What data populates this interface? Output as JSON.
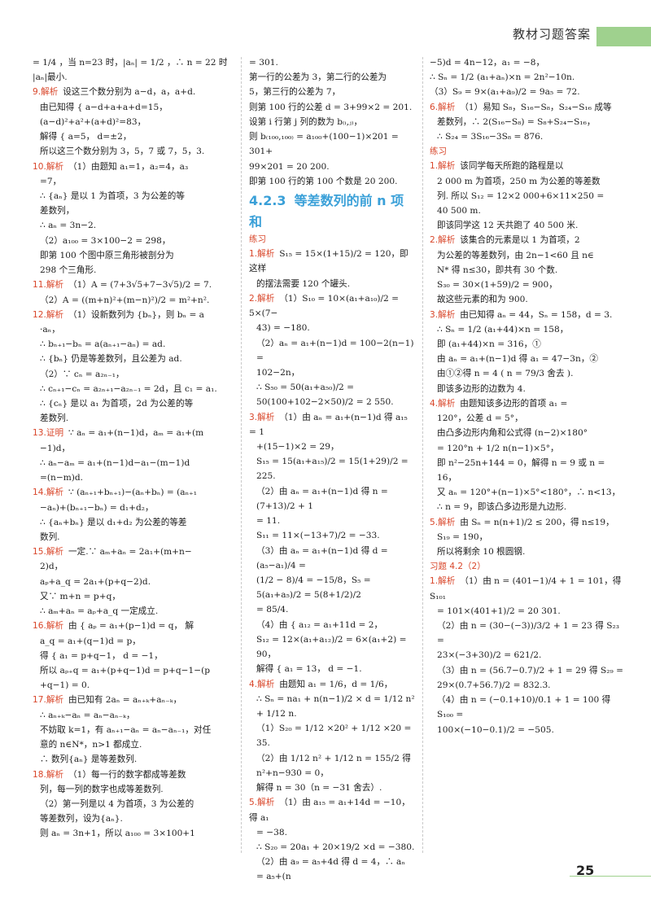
{
  "header": {
    "title": "教材习题答案"
  },
  "page_number": "25",
  "col1": [
    {
      "t": "= 1/4 ，当 n=23 时，|aₙ| = 1/2 ，∴ n = 22 时"
    },
    {
      "t": "|aₙ|最小."
    },
    {
      "label": "9.解析",
      "t": "设这三个数分别为 a−d，a，a+d."
    },
    {
      "t": "由已知得 { a−d+a+a+d=15，",
      "ind": true
    },
    {
      "t": "         (a−d)²+a²+(a+d)²=83，",
      "ind": true
    },
    {
      "t": "解得 { a=5，  d=±2，",
      "ind": true
    },
    {
      "t": "所以这三个数分别为 3，5，7 或 7，5，3.",
      "ind": true
    },
    {
      "label": "10.解析",
      "t": "（1）由题知 a₁=1，a₂=4，a₃"
    },
    {
      "t": "=7，",
      "ind": true
    },
    {
      "t": "∴ {aₙ} 是以 1 为首项，3 为公差的等",
      "ind": true
    },
    {
      "t": "差数列，",
      "ind": true
    },
    {
      "t": "∴ aₙ = 3n−2.",
      "ind": true
    },
    {
      "t": "（2）a₁₀₀ = 3×100−2 = 298，",
      "ind": true
    },
    {
      "t": "即第 100 个图中原三角形被剖分为",
      "ind": true
    },
    {
      "t": "298 个三角形.",
      "ind": true
    },
    {
      "label": "11.解析",
      "t": "（1）A = (7+3√5+7−3√5)/2 = 7."
    },
    {
      "t": "（2）A = ((m+n)²+(m−n)²)/2 = m²+n².",
      "ind": true
    },
    {
      "label": "12.解析",
      "t": "（1）设新数列为 {bₙ}，则 bₙ = a"
    },
    {
      "t": "·aₙ，",
      "ind": true
    },
    {
      "t": "∴ bₙ₊₁−bₙ = a(aₙ₊₁−aₙ) = ad.",
      "ind": true
    },
    {
      "t": "∴ {bₙ} 仍是等差数列，且公差为 ad.",
      "ind": true
    },
    {
      "t": "（2）∵ cₙ = a₂ₙ₋₁，",
      "ind": true
    },
    {
      "t": "∴ cₙ₊₁−cₙ = a₂ₙ₊₁−a₂ₙ₋₁ = 2d，且 c₁ = a₁.",
      "ind": true
    },
    {
      "t": "∴ {cₙ} 是以 a₁ 为首项，2d 为公差的等",
      "ind": true
    },
    {
      "t": "差数列.",
      "ind": true
    },
    {
      "label": "13.证明",
      "t": "∵ aₙ = a₁+(n−1)d，aₘ = a₁+(m"
    },
    {
      "t": "−1)d，",
      "ind": true
    },
    {
      "t": "∴ aₙ−aₘ = a₁+(n−1)d−a₁−(m−1)d",
      "ind": true
    },
    {
      "t": "=(n−m)d.",
      "ind": true
    },
    {
      "label": "14.解析",
      "t": "∵ (aₙ₊₁+bₙ₊₁)−(aₙ+bₙ) = (aₙ₊₁"
    },
    {
      "t": "−aₙ)+(bₙ₊₁−bₙ) = d₁+d₂，",
      "ind": true
    },
    {
      "t": "∴ {aₙ+bₙ} 是以 d₁+d₂ 为公差的等差",
      "ind": true
    },
    {
      "t": "数列.",
      "ind": true
    },
    {
      "label": "15.解析",
      "t": "一定.∵ aₘ+aₙ = 2a₁+(m+n−"
    },
    {
      "t": "2)d，",
      "ind": true
    },
    {
      "t": "aₚ+a_q = 2a₁+(p+q−2)d.",
      "ind": true
    },
    {
      "t": "又∵ m+n = p+q，",
      "ind": true
    },
    {
      "t": "∴ aₘ+aₙ = aₚ+a_q 一定成立.",
      "ind": true
    },
    {
      "label": "16.解析",
      "t": "由 { aₚ = a₁+(p−1)d = q，  解"
    },
    {
      "t": "     a_q = a₁+(q−1)d = p，",
      "ind": true
    },
    {
      "t": "得 { a₁ = p+q−1，  d = −1，",
      "ind": true
    },
    {
      "t": "所以 aₚ₊q = a₁+(p+q−1)d = p+q−1−(p",
      "ind": true
    },
    {
      "t": "+q−1) = 0.",
      "ind": true
    },
    {
      "label": "17.解析",
      "t": "由已知有 2aₙ = aₙ₊ₖ+aₙ₋ₖ，"
    },
    {
      "t": "∴ aₙ₊ₖ−aₙ = aₙ−aₙ₋ₖ，",
      "ind": true
    },
    {
      "t": "不妨取 k=1，有 aₙ₊₁−aₙ = aₙ−aₙ₋₁，对任",
      "ind": true
    },
    {
      "t": "意的 n∈N*，n>1 都成立.",
      "ind": true
    },
    {
      "t": "∴ 数列{aₙ} 是等差数列.",
      "ind": true
    },
    {
      "label": "18.解析",
      "t": "（1）每一行的数字都成等差数"
    },
    {
      "t": "列，每一列的数字也成等差数列.",
      "ind": true
    },
    {
      "t": "（2）第一列是以 4 为首项，3 为公差的",
      "ind": true
    },
    {
      "t": "等差数列，设为{aₙ}.",
      "ind": true
    },
    {
      "t": "则 aₙ = 3n+1，所以 a₁₀₀ = 3×100+1",
      "ind": true
    }
  ],
  "col2_top": [
    {
      "t": "= 301."
    },
    {
      "t": "第一行的公差为 3，第二行的公差为"
    },
    {
      "t": "5，第三行的公差为 7，"
    },
    {
      "t": "则第 100 行的公差 d = 3+99×2 = 201."
    },
    {
      "t": "设第 i 行第 j 列的数为 b₍ᵢ,ⱼ₎，"
    },
    {
      "t": "则 b₍₁₀₀,₁₀₀₎ = a₁₀₀+(100−1)×201 = 301+"
    },
    {
      "t": "99×201 = 20 200."
    },
    {
      "t": "即第 100 行的第 100 个数是 20 200."
    }
  ],
  "section": {
    "number": "4.2.3",
    "title": "等差数列的前 n 项和"
  },
  "practice_label": "练习",
  "col2_body": [
    {
      "label": "1.解析",
      "t": "S₁₅ = 15×(1+15)/2 = 120，即这样"
    },
    {
      "t": "的摆法需要 120 个罐头.",
      "ind": true
    },
    {
      "label": "2.解析",
      "t": "（1）S₁₀ = 10×(a₁+a₁₀)/2 = 5×(7−"
    },
    {
      "t": "43) = −180.",
      "ind": true
    },
    {
      "t": "（2）aₙ = a₁+(n−1)d = 100−2(n−1) =",
      "ind": true
    },
    {
      "t": "102−2n，",
      "ind": true
    },
    {
      "t": "∴  S₅₀ = 50(a₁+a₅₀)/2 =",
      "ind": true
    },
    {
      "t": "50(100+102−2×50)/2 = 2 550.",
      "ind": true
    },
    {
      "label": "3.解析",
      "t": "（1）由 aₙ = a₁+(n−1)d 得 a₁₅ = 1"
    },
    {
      "t": "+(15−1)×2 = 29，",
      "ind": true
    },
    {
      "t": "S₁₅ = 15(a₁+a₁₅)/2 = 15(1+29)/2 = 225.",
      "ind": true
    },
    {
      "t": "（2）由 aₙ = a₁+(n−1)d 得 n = (7+13)/2 + 1",
      "ind": true
    },
    {
      "t": "= 11.",
      "ind": true
    },
    {
      "t": "S₁₁ = 11×(−13+7)/2 = −33.",
      "ind": true
    },
    {
      "t": "（3）由 aₙ = a₁+(n−1)d 得 d = (a₅−a₁)/4 =",
      "ind": true
    },
    {
      "t": "(1/2 − 8)/4 = −15/8，S₅ = 5(a₁+a₅)/2 = 5(8+1/2)/2",
      "ind": true
    },
    {
      "t": "= 85/4.",
      "ind": true
    },
    {
      "t": "（4）由 { a₁₂ = a₁+11d = 2，",
      "ind": true
    },
    {
      "t": "       S₁₂ = 12×(a₁+a₁₂)/2 = 6×(a₁+2) = 90，",
      "ind": true
    },
    {
      "t": "解得 { a₁ = 13，  d = −1.",
      "ind": true
    },
    {
      "label": "4.解析",
      "t": "由题知 a₁ = 1/6，d = 1/6，"
    },
    {
      "t": "∴ Sₙ = na₁ + n(n−1)/2 × d = 1/12 n² + 1/12 n.",
      "ind": true
    },
    {
      "t": "（1）S₂₀ = 1/12 ×20² + 1/12 ×20 = 35.",
      "ind": true
    },
    {
      "t": "（2）由 1/12 n² + 1/12 n = 155/2 得 n²+n−930 = 0，",
      "ind": true
    },
    {
      "t": "解得 n = 30（n = −31 舍去）.",
      "ind": true
    },
    {
      "label": "5.解析",
      "t": "（1）由 a₁₅ = a₁+14d = −10，得 a₁"
    },
    {
      "t": "= −38.",
      "ind": true
    },
    {
      "t": "∴ S₂₀ = 20a₁ + 20×19/2 ×d = −380.",
      "ind": true
    },
    {
      "t": "（2）由 a₉ = a₅+4d 得 d = 4，∴ aₙ = a₅+(n",
      "ind": true
    }
  ],
  "col3_top": [
    {
      "t": "−5)d = 4n−12，a₁ = −8，"
    },
    {
      "t": "∴ Sₙ = 1/2 (a₁+aₙ)×n = 2n²−10n."
    },
    {
      "t": "（3）S₉ = 9×(a₁+a₉)/2 = 9a₅ = 72."
    },
    {
      "label": "6.解析",
      "t": "（1）易知 S₈，S₁₆−S₈，S₂₄−S₁₆ 成等"
    },
    {
      "t": "差数列，∴ 2(S₁₆−S₈) = S₈+S₂₄−S₁₆，",
      "ind": true
    },
    {
      "t": "∴ S₂₄ = 3S₁₆−3S₈ = 876.",
      "ind": true
    }
  ],
  "exercise_label": "练习",
  "col3_ex": [
    {
      "label": "1.解析",
      "t": "该同学每天所跑的路程是以"
    },
    {
      "t": "2 000 m 为首项，250 m 为公差的等差数",
      "ind": true
    },
    {
      "t": "列. 所以 S₁₂ = 12×2 000+6×11×250 =",
      "ind": true
    },
    {
      "t": "40 500 m.",
      "ind": true
    },
    {
      "t": "即该同学这 12 天共跑了 40 500 米.",
      "ind": true
    },
    {
      "label": "2.解析",
      "t": "该集合的元素是以 1 为首项，2"
    },
    {
      "t": "为公差的等差数列，由 2n−1<60 且 n∈",
      "ind": true
    },
    {
      "t": "N* 得 n≤30，即共有 30 个数.",
      "ind": true
    },
    {
      "t": "S₃₀ = 30×(1+59)/2 = 900，",
      "ind": true
    },
    {
      "t": "故这些元素的和为 900.",
      "ind": true
    },
    {
      "label": "3.解析",
      "t": "由已知得 aₙ = 44，Sₙ = 158，d = 3."
    },
    {
      "t": "∴ Sₙ = 1/2 (a₁+44)×n = 158，",
      "ind": true
    },
    {
      "t": "即 (a₁+44)×n = 316，①",
      "ind": true
    },
    {
      "t": "由 aₙ = a₁+(n−1)d 得 a₁ = 47−3n，②",
      "ind": true
    },
    {
      "t": "由①②得 n = 4 ( n = 79/3 舍去 ).",
      "ind": true
    },
    {
      "t": "即该多边形的边数为 4.",
      "ind": true
    },
    {
      "label": "4.解析",
      "t": "由题知该多边形的首项 a₁ ="
    },
    {
      "t": "120°，公差 d = 5°，",
      "ind": true
    },
    {
      "t": "由凸多边形内角和公式得 (n−2)×180°",
      "ind": true
    },
    {
      "t": "= 120°n + 1/2 n(n−1)×5°，",
      "ind": true
    },
    {
      "t": "即 n²−25n+144 = 0，解得 n = 9 或 n = 16，",
      "ind": true
    },
    {
      "t": "又 aₙ = 120°+(n−1)×5°<180°，∴ n<13，",
      "ind": true
    },
    {
      "t": "∴ n = 9，即该凸多边形是九边形.",
      "ind": true
    },
    {
      "label": "5.解析",
      "t": "由 Sₙ = n(n+1)/2 ≤ 200，得 n≤19，"
    },
    {
      "t": "S₁₉ = 190，",
      "ind": true
    },
    {
      "t": "所以将剩余 10 根圆钢.",
      "ind": true
    }
  ],
  "homework_label": "习题 4.2（2）",
  "col3_hw": [
    {
      "label": "1.解析",
      "t": "（1）由 n = (401−1)/4 + 1 = 101，得 S₁₀₁"
    },
    {
      "t": "= 101×(401+1)/2 = 20 301.",
      "ind": true
    },
    {
      "t": "（2）由 n = (30−(−3))/3/2 + 1 = 23 得 S₂₃ =",
      "ind": true
    },
    {
      "t": "23×(−3+30)/2 = 621/2.",
      "ind": true
    },
    {
      "t": "（3）由 n = (56.7−0.7)/2 + 1 = 29 得 S₂₉ =",
      "ind": true
    },
    {
      "t": "29×(0.7+56.7)/2 = 832.3.",
      "ind": true
    },
    {
      "t": "（4）由 n = (−0.1+10)/0.1 + 1 = 100 得 S₁₀₀ =",
      "ind": true
    },
    {
      "t": "100×(−10−0.1)/2 = −505.",
      "ind": true
    }
  ]
}
